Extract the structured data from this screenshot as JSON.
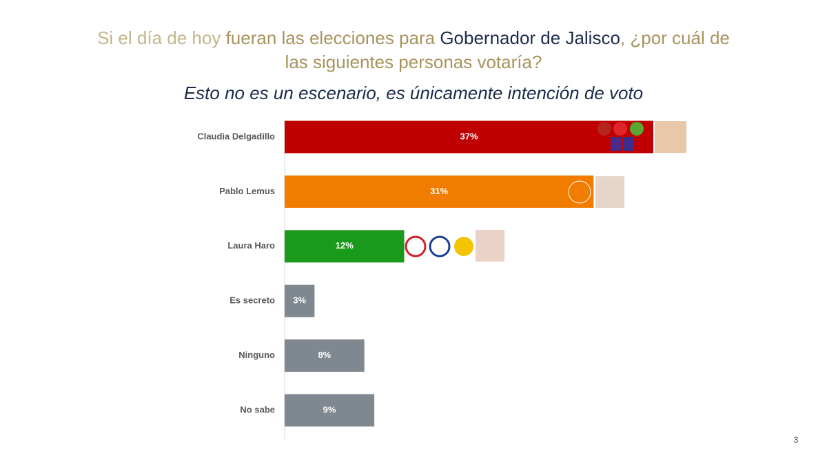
{
  "chart_data": {
    "type": "bar",
    "title_lines": [
      [
        {
          "text": "Si el día de hoy ",
          "color": "#c4b58a"
        },
        {
          "text": "fueran las elecciones para ",
          "color": "#a8935c"
        },
        {
          "text": "Gobernador de Jalisco",
          "color": "#1c2b4b"
        },
        {
          "text": ", ¿por cuál de",
          "color": "#a8935c"
        }
      ],
      [
        {
          "text": "las siguientes personas votaría?",
          "color": "#a8935c"
        }
      ]
    ],
    "subtitle": "Esto no es un escenario, es únicamente intención de voto",
    "categories": [
      "Claudia Delgadillo",
      "Pablo Lemus",
      "Laura Haro",
      "Es secreto",
      "Ninguno",
      "No sabe"
    ],
    "values": [
      37,
      31,
      12,
      3,
      8,
      9
    ],
    "value_labels": [
      "37%",
      "31%",
      "12%",
      "3%",
      "8%",
      "9%"
    ],
    "colors": [
      "#c00000",
      "#f07c00",
      "#1a9a1a",
      "#7f8790",
      "#7f8790",
      "#7f8790"
    ],
    "page_number": "3"
  }
}
